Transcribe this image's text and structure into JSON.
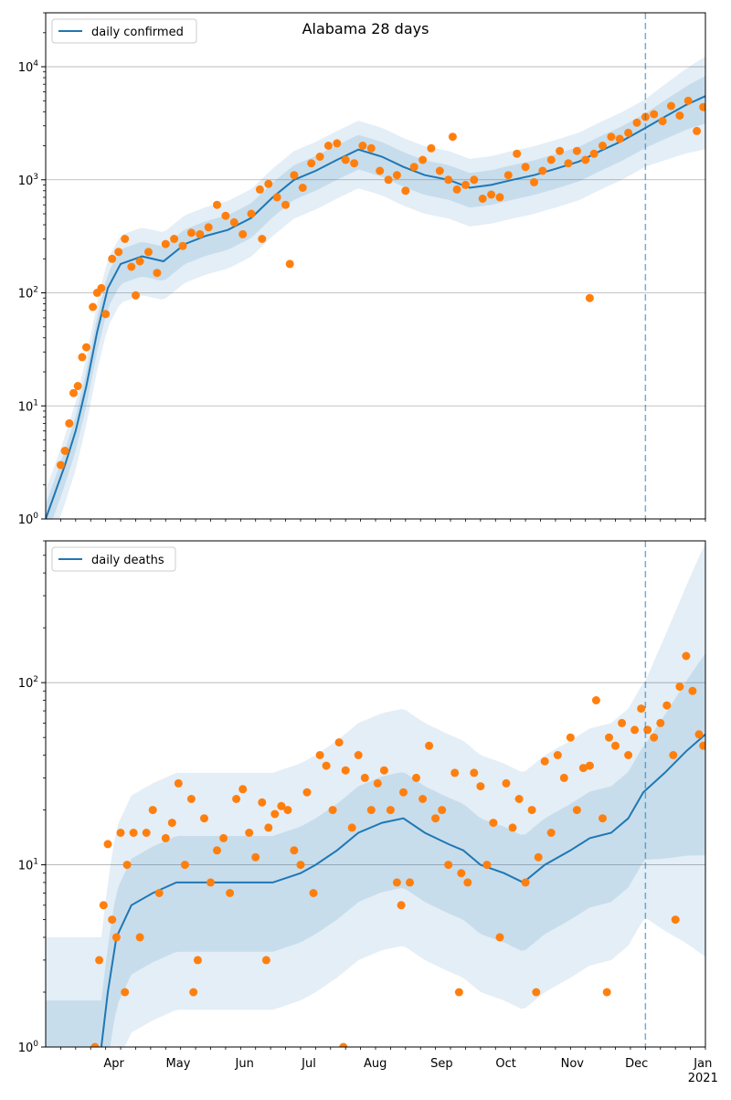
{
  "figure": {
    "title": "Alabama 28 days"
  },
  "colors": {
    "line": "#1f77b4",
    "points": "#ff7f0e",
    "band": "#1f77b4",
    "grid": "#b0b0b0",
    "forecast_line": "#1f77b4"
  },
  "chart_data": [
    {
      "type": "line",
      "title": "Alabama 28 days",
      "yscale": "log",
      "ylim": [
        1,
        30000
      ],
      "xlim": [
        "2020-03-01",
        "2021-01-03"
      ],
      "forecast_start": "2020-12-06",
      "grid": "horizontal major",
      "legend_position": "top-left",
      "legend": [
        "daily confirmed"
      ],
      "x_ticks": [
        "Apr",
        "May",
        "Jun",
        "Jul",
        "Aug",
        "Sep",
        "Oct",
        "Nov",
        "Dec",
        "Jan"
      ],
      "x_tick_extra": "2021",
      "y_ticks": [
        "10^0",
        "10^1",
        "10^2",
        "10^3",
        "10^4"
      ],
      "series": [
        {
          "name": "daily confirmed",
          "kind": "line",
          "x": [
            "2020-03-01",
            "2020-03-10",
            "2020-03-15",
            "2020-03-20",
            "2020-03-25",
            "2020-03-30",
            "2020-04-05",
            "2020-04-15",
            "2020-04-25",
            "2020-05-05",
            "2020-05-15",
            "2020-05-25",
            "2020-06-05",
            "2020-06-15",
            "2020-06-25",
            "2020-07-05",
            "2020-07-15",
            "2020-07-25",
            "2020-08-05",
            "2020-08-15",
            "2020-08-25",
            "2020-09-05",
            "2020-09-15",
            "2020-09-25",
            "2020-10-05",
            "2020-10-15",
            "2020-10-25",
            "2020-11-05",
            "2020-11-15",
            "2020-11-25",
            "2020-12-05",
            "2020-12-15",
            "2020-12-25",
            "2021-01-03"
          ],
          "y": [
            1,
            3,
            6,
            15,
            45,
            110,
            180,
            210,
            190,
            270,
            320,
            360,
            460,
            700,
            1000,
            1200,
            1500,
            1850,
            1600,
            1300,
            1100,
            1000,
            850,
            900,
            1000,
            1100,
            1250,
            1450,
            1800,
            2200,
            2800,
            3600,
            4600,
            5500
          ]
        },
        {
          "name": "reported (points)",
          "kind": "scatter",
          "x": [
            "2020-03-08",
            "2020-03-10",
            "2020-03-12",
            "2020-03-14",
            "2020-03-16",
            "2020-03-18",
            "2020-03-20",
            "2020-03-23",
            "2020-03-25",
            "2020-03-27",
            "2020-03-29",
            "2020-04-01",
            "2020-04-04",
            "2020-04-07",
            "2020-04-10",
            "2020-04-14",
            "2020-04-18",
            "2020-04-22",
            "2020-04-26",
            "2020-04-30",
            "2020-05-04",
            "2020-05-08",
            "2020-05-12",
            "2020-05-16",
            "2020-05-20",
            "2020-05-24",
            "2020-05-28",
            "2020-06-01",
            "2020-06-05",
            "2020-06-09",
            "2020-06-13",
            "2020-06-17",
            "2020-06-21",
            "2020-06-25",
            "2020-06-29",
            "2020-07-03",
            "2020-07-07",
            "2020-07-11",
            "2020-07-15",
            "2020-07-19",
            "2020-07-23",
            "2020-07-27",
            "2020-07-31",
            "2020-08-04",
            "2020-08-08",
            "2020-08-12",
            "2020-08-16",
            "2020-08-20",
            "2020-08-24",
            "2020-08-28",
            "2020-09-01",
            "2020-09-05",
            "2020-09-09",
            "2020-09-13",
            "2020-09-17",
            "2020-09-21",
            "2020-09-25",
            "2020-09-29",
            "2020-10-03",
            "2020-10-07",
            "2020-10-11",
            "2020-10-15",
            "2020-10-19",
            "2020-10-23",
            "2020-10-27",
            "2020-10-31",
            "2020-11-04",
            "2020-11-08",
            "2020-11-12",
            "2020-11-16",
            "2020-11-20",
            "2020-11-24",
            "2020-11-28",
            "2020-12-02",
            "2020-12-06",
            "2020-12-10",
            "2020-12-14",
            "2020-12-18",
            "2020-12-22",
            "2020-12-26",
            "2020-12-30",
            "2021-01-02",
            "2020-06-23",
            "2020-11-10",
            "2020-04-12",
            "2020-06-10",
            "2020-09-07"
          ],
          "y": [
            3,
            4,
            7,
            13,
            15,
            27,
            33,
            75,
            100,
            110,
            65,
            200,
            230,
            300,
            170,
            190,
            230,
            150,
            270,
            300,
            260,
            340,
            330,
            380,
            600,
            480,
            420,
            330,
            500,
            820,
            920,
            700,
            600,
            1100,
            850,
            1400,
            1600,
            2000,
            2100,
            1500,
            1400,
            2000,
            1900,
            1200,
            1000,
            1100,
            800,
            1300,
            1500,
            1900,
            1200,
            1000,
            820,
            900,
            1000,
            680,
            740,
            700,
            1100,
            1700,
            1300,
            950,
            1200,
            1500,
            1800,
            1400,
            1800,
            1500,
            1700,
            2000,
            2400,
            2300,
            2600,
            3200,
            3600,
            3800,
            3300,
            4500,
            3700,
            5000,
            2700,
            4400,
            180,
            90,
            95,
            300,
            2400
          ]
        }
      ]
    },
    {
      "type": "line",
      "yscale": "log",
      "ylim": [
        1,
        600
      ],
      "xlim": [
        "2020-03-01",
        "2021-01-03"
      ],
      "forecast_start": "2020-12-06",
      "grid": "horizontal major",
      "legend_position": "top-left",
      "legend": [
        "daily deaths"
      ],
      "x_ticks": [
        "Apr",
        "May",
        "Jun",
        "Jul",
        "Aug",
        "Sep",
        "Oct",
        "Nov",
        "Dec",
        "Jan"
      ],
      "x_tick_extra": "2021",
      "y_ticks": [
        "10^0",
        "10^1",
        "10^2"
      ],
      "series": [
        {
          "name": "daily deaths",
          "kind": "line",
          "x": [
            "2020-03-27",
            "2020-03-30",
            "2020-04-03",
            "2020-04-10",
            "2020-04-20",
            "2020-05-01",
            "2020-05-10",
            "2020-05-20",
            "2020-06-01",
            "2020-06-15",
            "2020-06-28",
            "2020-07-05",
            "2020-07-15",
            "2020-07-25",
            "2020-08-05",
            "2020-08-15",
            "2020-08-25",
            "2020-09-05",
            "2020-09-12",
            "2020-09-20",
            "2020-10-01",
            "2020-10-10",
            "2020-10-20",
            "2020-11-01",
            "2020-11-10",
            "2020-11-20",
            "2020-11-28",
            "2020-12-05",
            "2020-12-15",
            "2020-12-25",
            "2021-01-03"
          ],
          "y": [
            1,
            2,
            4,
            6,
            7,
            8,
            8,
            8,
            8,
            8,
            9,
            10,
            12,
            15,
            17,
            18,
            15,
            13,
            12,
            10,
            9,
            8,
            10,
            12,
            14,
            15,
            18,
            25,
            32,
            42,
            52
          ]
        },
        {
          "name": "reported deaths (points)",
          "kind": "scatter",
          "x": [
            "2020-03-24",
            "2020-03-26",
            "2020-03-28",
            "2020-03-30",
            "2020-04-01",
            "2020-04-03",
            "2020-04-05",
            "2020-04-08",
            "2020-04-11",
            "2020-04-14",
            "2020-04-17",
            "2020-04-20",
            "2020-04-23",
            "2020-04-26",
            "2020-04-29",
            "2020-05-02",
            "2020-05-05",
            "2020-05-08",
            "2020-05-11",
            "2020-05-14",
            "2020-05-17",
            "2020-05-20",
            "2020-05-23",
            "2020-05-26",
            "2020-05-29",
            "2020-06-01",
            "2020-06-04",
            "2020-06-07",
            "2020-06-10",
            "2020-06-13",
            "2020-06-16",
            "2020-06-19",
            "2020-06-22",
            "2020-06-25",
            "2020-06-28",
            "2020-07-01",
            "2020-07-04",
            "2020-07-07",
            "2020-07-10",
            "2020-07-13",
            "2020-07-16",
            "2020-07-19",
            "2020-07-22",
            "2020-07-25",
            "2020-07-28",
            "2020-07-31",
            "2020-08-03",
            "2020-08-06",
            "2020-08-09",
            "2020-08-12",
            "2020-08-15",
            "2020-08-18",
            "2020-08-21",
            "2020-08-24",
            "2020-08-27",
            "2020-08-30",
            "2020-09-02",
            "2020-09-05",
            "2020-09-08",
            "2020-09-11",
            "2020-09-14",
            "2020-09-17",
            "2020-09-20",
            "2020-09-23",
            "2020-09-26",
            "2020-09-29",
            "2020-10-02",
            "2020-10-05",
            "2020-10-08",
            "2020-10-11",
            "2020-10-14",
            "2020-10-17",
            "2020-10-20",
            "2020-10-23",
            "2020-10-26",
            "2020-10-29",
            "2020-11-01",
            "2020-11-04",
            "2020-11-07",
            "2020-11-10",
            "2020-11-13",
            "2020-11-16",
            "2020-11-19",
            "2020-11-22",
            "2020-11-25",
            "2020-11-28",
            "2020-12-01",
            "2020-12-04",
            "2020-12-07",
            "2020-12-10",
            "2020-12-13",
            "2020-12-16",
            "2020-12-19",
            "2020-12-22",
            "2020-12-25",
            "2020-12-28",
            "2020-12-31",
            "2021-01-02",
            "2020-04-07",
            "2020-05-09",
            "2020-06-12",
            "2020-07-18",
            "2020-08-14",
            "2020-09-10",
            "2020-10-16",
            "2020-11-18",
            "2020-12-20"
          ],
          "y": [
            1,
            3,
            6,
            13,
            5,
            4,
            15,
            10,
            15,
            4,
            15,
            20,
            7,
            14,
            17,
            28,
            10,
            23,
            3,
            18,
            8,
            12,
            14,
            7,
            23,
            26,
            15,
            11,
            22,
            16,
            19,
            21,
            20,
            12,
            10,
            25,
            7,
            40,
            35,
            20,
            47,
            33,
            16,
            40,
            30,
            20,
            28,
            33,
            20,
            8,
            25,
            8,
            30,
            23,
            45,
            18,
            20,
            10,
            32,
            9,
            8,
            32,
            27,
            10,
            17,
            4,
            28,
            16,
            23,
            8,
            20,
            11,
            37,
            15,
            40,
            30,
            50,
            20,
            34,
            35,
            80,
            18,
            50,
            45,
            60,
            40,
            55,
            72,
            55,
            50,
            60,
            75,
            40,
            95,
            140,
            90,
            52,
            45,
            2,
            2,
            3,
            1,
            6,
            2,
            2,
            2,
            5
          ]
        }
      ]
    }
  ]
}
